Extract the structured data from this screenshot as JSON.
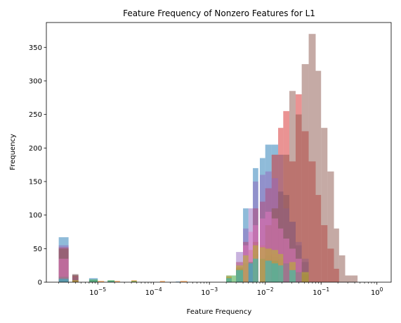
{
  "chart_data": {
    "type": "bar",
    "title": "Feature Frequency of Nonzero Features for L1",
    "xlabel": "Feature Frequency",
    "ylabel": "Frequency",
    "xscale": "log",
    "xlim": [
      1.2e-06,
      1.8
    ],
    "ylim": [
      0,
      387
    ],
    "grid": false,
    "x_ticks": [
      {
        "value": 1e-05,
        "base": "10",
        "exp": "−5"
      },
      {
        "value": 0.0001,
        "base": "10",
        "exp": "−4"
      },
      {
        "value": 0.001,
        "base": "10",
        "exp": "−3"
      },
      {
        "value": 0.01,
        "base": "10",
        "exp": "−2"
      },
      {
        "value": 0.1,
        "base": "10",
        "exp": "−1"
      },
      {
        "value": 1,
        "base": "10",
        "exp": "0"
      }
    ],
    "y_ticks": [
      0,
      50,
      100,
      150,
      200,
      250,
      300,
      350
    ],
    "series": [
      {
        "color": "#1f77b4",
        "bins": [
          [
            2e-06,
            3e-06,
            67
          ],
          [
            3.5e-06,
            4.5e-06,
            11
          ],
          [
            7e-06,
            1e-05,
            6
          ],
          [
            1.5e-05,
            2e-05,
            2
          ],
          [
            0.00025,
            0.0003,
            1
          ],
          [
            0.002,
            0.0025,
            10
          ],
          [
            0.004,
            0.005,
            110
          ],
          [
            0.006,
            0.0075,
            170
          ],
          [
            0.008,
            0.01,
            185
          ],
          [
            0.01,
            0.013,
            205
          ],
          [
            0.013,
            0.017,
            205
          ],
          [
            0.017,
            0.021,
            190
          ],
          [
            0.021,
            0.027,
            130
          ],
          [
            0.027,
            0.035,
            90
          ],
          [
            0.035,
            0.045,
            55
          ],
          [
            0.045,
            0.06,
            30
          ]
        ]
      },
      {
        "color": "#ff7f0e",
        "bins": [
          [
            2e-06,
            3e-06,
            4
          ],
          [
            3.5e-06,
            4.5e-06,
            2
          ],
          [
            1e-05,
            1.3e-05,
            2
          ],
          [
            2e-05,
            2.5e-05,
            2
          ],
          [
            4e-05,
            5e-05,
            3
          ],
          [
            0.00013,
            0.00016,
            2
          ],
          [
            0.0003,
            0.0004,
            2
          ],
          [
            0.002,
            0.0025,
            8
          ],
          [
            0.003,
            0.004,
            22
          ],
          [
            0.005,
            0.006,
            48
          ],
          [
            0.006,
            0.0075,
            60
          ],
          [
            0.008,
            0.01,
            55
          ],
          [
            0.01,
            0.013,
            50
          ],
          [
            0.013,
            0.017,
            42
          ],
          [
            0.017,
            0.021,
            35
          ],
          [
            0.027,
            0.035,
            22
          ],
          [
            0.045,
            0.06,
            10
          ]
        ]
      },
      {
        "color": "#2ca02c",
        "bins": [
          [
            2e-06,
            3e-06,
            3
          ],
          [
            7e-06,
            1e-05,
            4
          ],
          [
            1.5e-05,
            2e-05,
            3
          ],
          [
            4e-05,
            5e-05,
            2
          ],
          [
            0.0025,
            0.003,
            10
          ],
          [
            0.004,
            0.005,
            28
          ],
          [
            0.006,
            0.0075,
            42
          ],
          [
            0.01,
            0.013,
            40
          ],
          [
            0.013,
            0.017,
            38
          ],
          [
            0.017,
            0.021,
            34
          ],
          [
            0.027,
            0.035,
            28
          ],
          [
            0.045,
            0.06,
            12
          ]
        ]
      },
      {
        "color": "#d62728",
        "bins": [
          [
            2e-06,
            3e-06,
            52
          ],
          [
            3.5e-06,
            4.5e-06,
            10
          ],
          [
            0.003,
            0.004,
            30
          ],
          [
            0.004,
            0.005,
            60
          ],
          [
            0.006,
            0.0075,
            110
          ],
          [
            0.008,
            0.01,
            120
          ],
          [
            0.01,
            0.013,
            140
          ],
          [
            0.013,
            0.017,
            190
          ],
          [
            0.017,
            0.021,
            230
          ],
          [
            0.021,
            0.027,
            255
          ],
          [
            0.027,
            0.035,
            180
          ],
          [
            0.035,
            0.045,
            280
          ],
          [
            0.045,
            0.06,
            225
          ],
          [
            0.06,
            0.08,
            180
          ],
          [
            0.08,
            0.1,
            130
          ],
          [
            0.1,
            0.13,
            85
          ],
          [
            0.13,
            0.17,
            50
          ],
          [
            0.17,
            0.21,
            20
          ]
        ]
      },
      {
        "color": "#9467bd",
        "bins": [
          [
            2e-06,
            3e-06,
            55
          ],
          [
            3.5e-06,
            4.5e-06,
            8
          ],
          [
            0.003,
            0.004,
            45
          ],
          [
            0.004,
            0.005,
            80
          ],
          [
            0.005,
            0.006,
            110
          ],
          [
            0.006,
            0.0075,
            150
          ],
          [
            0.008,
            0.01,
            160
          ],
          [
            0.01,
            0.013,
            165
          ],
          [
            0.013,
            0.017,
            155
          ],
          [
            0.017,
            0.021,
            135
          ],
          [
            0.021,
            0.027,
            110
          ],
          [
            0.027,
            0.035,
            90
          ],
          [
            0.035,
            0.045,
            60
          ],
          [
            0.045,
            0.06,
            35
          ]
        ]
      },
      {
        "color": "#8c564b",
        "bins": [
          [
            2e-06,
            3e-06,
            50
          ],
          [
            3.5e-06,
            4.5e-06,
            12
          ],
          [
            0.005,
            0.006,
            30
          ],
          [
            0.006,
            0.0075,
            60
          ],
          [
            0.01,
            0.013,
            85
          ],
          [
            0.013,
            0.017,
            110
          ],
          [
            0.017,
            0.021,
            135
          ],
          [
            0.021,
            0.027,
            190
          ],
          [
            0.027,
            0.035,
            285
          ],
          [
            0.035,
            0.045,
            250
          ],
          [
            0.045,
            0.06,
            325
          ],
          [
            0.06,
            0.08,
            370
          ],
          [
            0.08,
            0.1,
            315
          ],
          [
            0.1,
            0.13,
            230
          ],
          [
            0.13,
            0.17,
            165
          ],
          [
            0.17,
            0.21,
            80
          ],
          [
            0.21,
            0.27,
            40
          ],
          [
            0.27,
            0.35,
            10
          ],
          [
            0.35,
            0.45,
            10
          ]
        ]
      },
      {
        "color": "#e377c2",
        "bins": [
          [
            2e-06,
            3e-06,
            35
          ],
          [
            0.004,
            0.005,
            55
          ],
          [
            0.005,
            0.006,
            75
          ],
          [
            0.006,
            0.0075,
            85
          ],
          [
            0.008,
            0.01,
            95
          ],
          [
            0.01,
            0.013,
            105
          ],
          [
            0.013,
            0.017,
            95
          ],
          [
            0.017,
            0.021,
            80
          ],
          [
            0.021,
            0.027,
            65
          ],
          [
            0.027,
            0.035,
            50
          ],
          [
            0.035,
            0.045,
            35
          ]
        ]
      },
      {
        "color": "#7f7f7f",
        "bins": [
          [
            2e-06,
            3e-06,
            8
          ],
          [
            0.002,
            0.0025,
            8
          ],
          [
            0.003,
            0.004,
            20
          ],
          [
            0.005,
            0.006,
            30
          ],
          [
            0.008,
            0.01,
            35
          ],
          [
            0.013,
            0.017,
            32
          ],
          [
            0.021,
            0.027,
            28
          ],
          [
            0.035,
            0.045,
            15
          ]
        ]
      },
      {
        "color": "#bcbd22",
        "bins": [
          [
            3.5e-06,
            4.5e-06,
            3
          ],
          [
            0.002,
            0.0025,
            10
          ],
          [
            0.003,
            0.004,
            25
          ],
          [
            0.004,
            0.005,
            40
          ],
          [
            0.006,
            0.0075,
            55
          ],
          [
            0.008,
            0.01,
            52
          ],
          [
            0.01,
            0.013,
            50
          ],
          [
            0.013,
            0.017,
            48
          ],
          [
            0.017,
            0.021,
            42
          ],
          [
            0.027,
            0.035,
            30
          ],
          [
            0.045,
            0.06,
            15
          ]
        ]
      },
      {
        "color": "#17becf",
        "bins": [
          [
            2e-06,
            3e-06,
            5
          ],
          [
            0.002,
            0.0025,
            6
          ],
          [
            0.003,
            0.004,
            18
          ],
          [
            0.005,
            0.006,
            28
          ],
          [
            0.006,
            0.0075,
            35
          ],
          [
            0.01,
            0.013,
            32
          ],
          [
            0.013,
            0.017,
            28
          ],
          [
            0.017,
            0.021,
            25
          ],
          [
            0.027,
            0.035,
            18
          ]
        ]
      }
    ]
  }
}
